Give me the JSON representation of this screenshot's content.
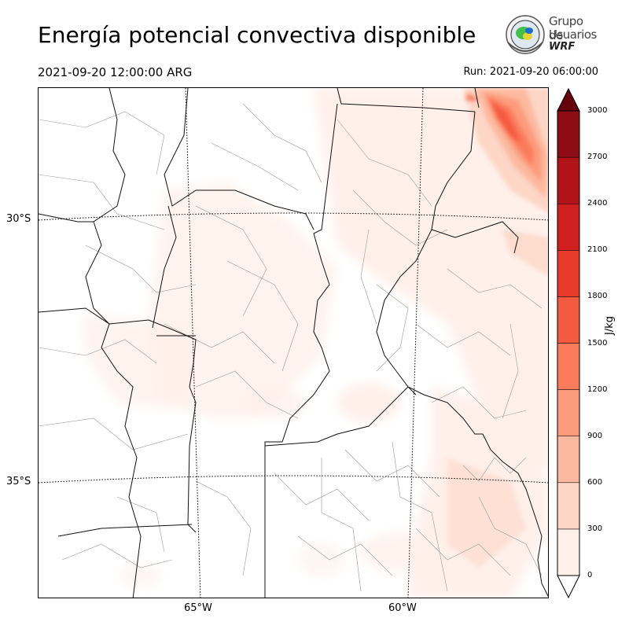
{
  "header": {
    "title": "Energía potencial convectiva disponible",
    "valid_time": "2021-09-20 12:00:00 ARG",
    "run_time": "Run: 2021-09-20 06:00:00"
  },
  "logo": {
    "line1": "Grupo de",
    "line2": "Usuarios",
    "line3": "WRF"
  },
  "map": {
    "lat_labels": [
      "30°S",
      "35°S"
    ],
    "lon_labels": [
      "65°W",
      "60°W"
    ]
  },
  "colorbar": {
    "unit": "J/kg",
    "ticks": [
      "3000",
      "2700",
      "2400",
      "2100",
      "1800",
      "1500",
      "1200",
      "900",
      "600",
      "300",
      "0"
    ],
    "colors": [
      "#fff0ea",
      "#fdd6c6",
      "#fcb99f",
      "#fc9b7c",
      "#fb7b5b",
      "#f45a40",
      "#e83a2b",
      "#d11f1f",
      "#b21319",
      "#8e0d15",
      "#67000d"
    ]
  }
}
